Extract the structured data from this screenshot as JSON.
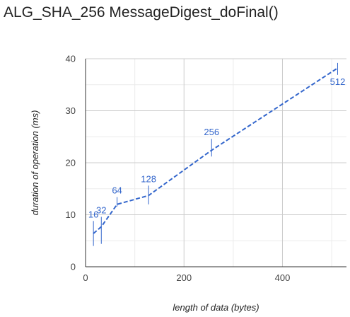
{
  "title": "ALG_SHA_256 MessageDigest_doFinal()",
  "colors": {
    "series": "#3366cc",
    "grid": "#cccccc",
    "minor_grid": "#ebebeb",
    "axis": "#333333"
  },
  "chart_data": {
    "type": "line",
    "title": "ALG_SHA_256 MessageDigest_doFinal()",
    "xlabel": "length of data (bytes)",
    "ylabel": "duration of operation (ms)",
    "xlim": [
      0,
      530
    ],
    "ylim": [
      0,
      40
    ],
    "x_ticks": [
      0,
      200,
      400
    ],
    "y_ticks": [
      0,
      10,
      20,
      30,
      40
    ],
    "grid": true,
    "line_style": "dashed",
    "series": [
      {
        "points": [
          {
            "x": 16,
            "y": 6.4,
            "low": 4.0,
            "high": 8.8,
            "label": "16"
          },
          {
            "x": 32,
            "y": 7.7,
            "low": 4.4,
            "high": 9.6,
            "label": "32"
          },
          {
            "x": 64,
            "y": 12.0,
            "low": 11.6,
            "high": 13.4,
            "label": "64"
          },
          {
            "x": 128,
            "y": 13.7,
            "low": 12.0,
            "high": 15.6,
            "label": "128"
          },
          {
            "x": 256,
            "y": 22.4,
            "low": 21.2,
            "high": 24.6,
            "label": "256"
          },
          {
            "x": 512,
            "y": 38.2,
            "low": 36.9,
            "high": 39.2,
            "label": "512"
          }
        ]
      }
    ]
  }
}
